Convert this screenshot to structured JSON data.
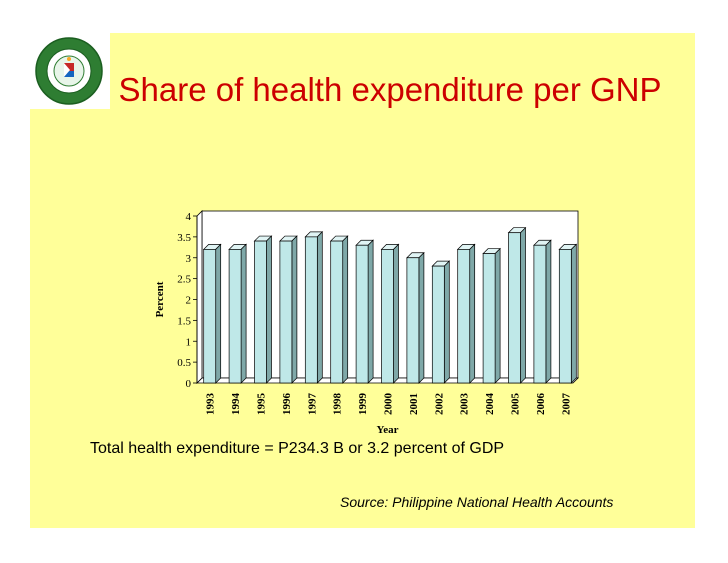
{
  "slide": {
    "title": "Share of health expenditure per GNP",
    "footnote": "Total health expenditure = P234.3 B or 3.2 percent of GDP",
    "source": "Source: Philippine National Health Accounts",
    "logo_text": "REPUBLIC OF THE PHILIPPINES DEPARTMENT OF HEALTH"
  },
  "colors": {
    "background": "#ffff99",
    "title": "#cc0000",
    "bar_face": "#bfe8e8",
    "bar_side": "#7fa8a8"
  },
  "chart_data": {
    "type": "bar",
    "categories": [
      "1993",
      "1994",
      "1995",
      "1996",
      "1997",
      "1998",
      "1999",
      "2000",
      "2001",
      "2002",
      "2003",
      "2004",
      "2005",
      "2006",
      "2007"
    ],
    "values": [
      3.2,
      3.2,
      3.4,
      3.4,
      3.5,
      3.4,
      3.3,
      3.2,
      3.0,
      2.8,
      3.2,
      3.1,
      3.6,
      3.3,
      3.2
    ],
    "xlabel": "Year",
    "ylabel": "Percent",
    "ylim": [
      0,
      4
    ],
    "yticks": [
      "0",
      "0.5",
      "1",
      "1.5",
      "2",
      "2.5",
      "3",
      "3.5",
      "4"
    ],
    "grid": false,
    "legend": "none"
  }
}
